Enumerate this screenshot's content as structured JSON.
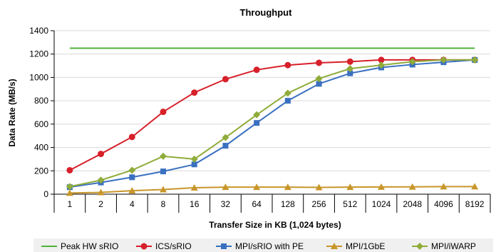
{
  "chart_data": {
    "type": "line",
    "title": "Throughput",
    "xlabel": "Transfer Size in KB (1,024 bytes)",
    "ylabel": "Data Rate (MB/s)",
    "categories": [
      "1",
      "2",
      "4",
      "8",
      "16",
      "32",
      "64",
      "128",
      "256",
      "512",
      "1024",
      "2048",
      "4096",
      "8192"
    ],
    "ylim": [
      0,
      1400
    ],
    "yticks": [
      0,
      200,
      400,
      600,
      800,
      1000,
      1200,
      1400
    ],
    "grid": true,
    "legend_position": "bottom",
    "series": [
      {
        "name": "Peak HW sRIO",
        "color": "#4fb33a",
        "marker": "none",
        "values": [
          1250,
          1250,
          1250,
          1250,
          1250,
          1250,
          1250,
          1250,
          1250,
          1250,
          1250,
          1250,
          1250,
          1250
        ]
      },
      {
        "name": "ICS/sRIO",
        "color": "#d7202a",
        "marker": "circle",
        "values": [
          205,
          345,
          490,
          705,
          870,
          985,
          1065,
          1105,
          1125,
          1135,
          1150,
          1150,
          1150,
          1150
        ]
      },
      {
        "name": "MPI/sRIO with PE",
        "color": "#3a70c0",
        "marker": "square",
        "values": [
          60,
          100,
          145,
          195,
          255,
          415,
          610,
          800,
          945,
          1035,
          1085,
          1110,
          1130,
          1150
        ]
      },
      {
        "name": "MPI/1GbE",
        "color": "#c8962a",
        "marker": "triangle",
        "values": [
          10,
          15,
          30,
          40,
          55,
          60,
          60,
          60,
          58,
          60,
          62,
          63,
          65,
          65
        ]
      },
      {
        "name": "MPI/iWARP",
        "color": "#8fac3a",
        "marker": "diamond",
        "values": [
          65,
          120,
          205,
          325,
          300,
          485,
          680,
          865,
          990,
          1075,
          1105,
          1135,
          1150,
          1150
        ]
      }
    ]
  }
}
